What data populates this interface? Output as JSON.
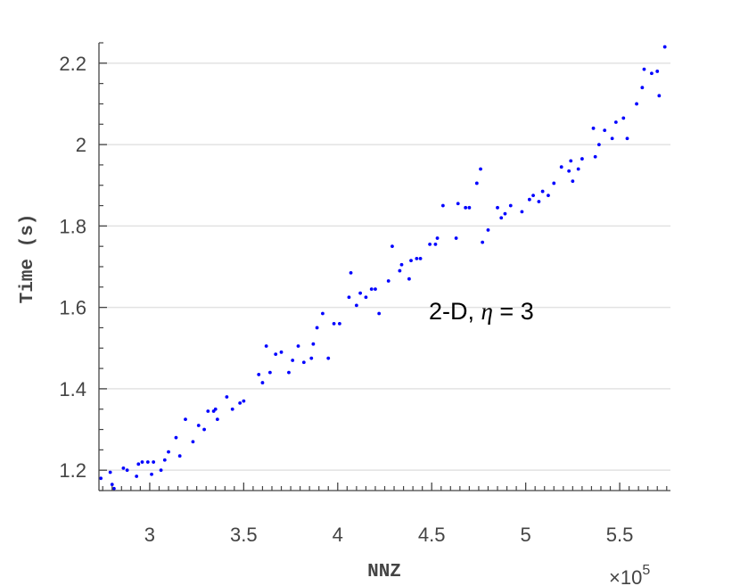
{
  "chart_data": {
    "type": "scatter",
    "xlabel": "NNZ",
    "ylabel": "Time (s)",
    "x_multiplier": {
      "base": "×10",
      "exponent": "5"
    },
    "xlim": [
      2.73,
      5.77
    ],
    "ylim": [
      1.15,
      2.25
    ],
    "x_ticks": [
      3,
      3.5,
      4,
      4.5,
      5,
      5.5
    ],
    "x_tick_labels": [
      "3",
      "3.5",
      "4",
      "4.5",
      "5",
      "5.5"
    ],
    "y_ticks": [
      1.2,
      1.4,
      1.6,
      1.8,
      2.0,
      2.2
    ],
    "y_tick_labels": [
      "1.2",
      "1.4",
      "1.6",
      "1.8",
      "2",
      "2.2"
    ],
    "grid": {
      "y": true,
      "x": false
    },
    "annotation": {
      "main": "2-D, ",
      "symbol": "η",
      "rest": " = 3"
    },
    "marker_color": "#0000ff",
    "series": [
      {
        "points": [
          [
            2.74,
            1.18
          ],
          [
            2.79,
            1.195
          ],
          [
            2.8,
            1.165
          ],
          [
            2.81,
            1.155
          ],
          [
            2.86,
            1.205
          ],
          [
            2.88,
            1.2
          ],
          [
            2.93,
            1.185
          ],
          [
            2.94,
            1.215
          ],
          [
            2.96,
            1.22
          ],
          [
            2.99,
            1.22
          ],
          [
            3.01,
            1.19
          ],
          [
            3.02,
            1.22
          ],
          [
            3.06,
            1.2
          ],
          [
            3.08,
            1.225
          ],
          [
            3.1,
            1.245
          ],
          [
            3.14,
            1.28
          ],
          [
            3.16,
            1.235
          ],
          [
            3.19,
            1.325
          ],
          [
            3.23,
            1.27
          ],
          [
            3.26,
            1.31
          ],
          [
            3.29,
            1.3
          ],
          [
            3.31,
            1.345
          ],
          [
            3.34,
            1.345
          ],
          [
            3.35,
            1.35
          ],
          [
            3.36,
            1.325
          ],
          [
            3.41,
            1.38
          ],
          [
            3.44,
            1.35
          ],
          [
            3.48,
            1.365
          ],
          [
            3.5,
            1.37
          ],
          [
            3.58,
            1.435
          ],
          [
            3.6,
            1.415
          ],
          [
            3.62,
            1.505
          ],
          [
            3.64,
            1.44
          ],
          [
            3.67,
            1.485
          ],
          [
            3.7,
            1.49
          ],
          [
            3.74,
            1.44
          ],
          [
            3.76,
            1.47
          ],
          [
            3.79,
            1.505
          ],
          [
            3.82,
            1.465
          ],
          [
            3.86,
            1.475
          ],
          [
            3.87,
            1.51
          ],
          [
            3.89,
            1.55
          ],
          [
            3.92,
            1.585
          ],
          [
            3.95,
            1.475
          ],
          [
            3.98,
            1.56
          ],
          [
            4.01,
            1.56
          ],
          [
            4.06,
            1.625
          ],
          [
            4.07,
            1.685
          ],
          [
            4.1,
            1.605
          ],
          [
            4.12,
            1.635
          ],
          [
            4.15,
            1.625
          ],
          [
            4.18,
            1.645
          ],
          [
            4.2,
            1.645
          ],
          [
            4.22,
            1.585
          ],
          [
            4.27,
            1.665
          ],
          [
            4.29,
            1.75
          ],
          [
            4.33,
            1.69
          ],
          [
            4.34,
            1.705
          ],
          [
            4.38,
            1.67
          ],
          [
            4.39,
            1.715
          ],
          [
            4.42,
            1.72
          ],
          [
            4.44,
            1.72
          ],
          [
            4.49,
            1.755
          ],
          [
            4.52,
            1.755
          ],
          [
            4.53,
            1.77
          ],
          [
            4.56,
            1.85
          ],
          [
            4.63,
            1.77
          ],
          [
            4.64,
            1.855
          ],
          [
            4.68,
            1.845
          ],
          [
            4.7,
            1.845
          ],
          [
            4.74,
            1.905
          ],
          [
            4.76,
            1.94
          ],
          [
            4.77,
            1.76
          ],
          [
            4.8,
            1.79
          ],
          [
            4.85,
            1.845
          ],
          [
            4.87,
            1.82
          ],
          [
            4.89,
            1.83
          ],
          [
            4.92,
            1.85
          ],
          [
            4.98,
            1.835
          ],
          [
            5.02,
            1.865
          ],
          [
            5.04,
            1.875
          ],
          [
            5.07,
            1.86
          ],
          [
            5.09,
            1.885
          ],
          [
            5.12,
            1.875
          ],
          [
            5.15,
            1.905
          ],
          [
            5.19,
            1.945
          ],
          [
            5.23,
            1.935
          ],
          [
            5.24,
            1.96
          ],
          [
            5.25,
            1.91
          ],
          [
            5.28,
            1.94
          ],
          [
            5.3,
            1.965
          ],
          [
            5.36,
            2.04
          ],
          [
            5.37,
            1.97
          ],
          [
            5.39,
            2.0
          ],
          [
            5.42,
            2.035
          ],
          [
            5.46,
            2.015
          ],
          [
            5.48,
            2.055
          ],
          [
            5.52,
            2.065
          ],
          [
            5.54,
            2.015
          ],
          [
            5.59,
            2.1
          ],
          [
            5.62,
            2.14
          ],
          [
            5.63,
            2.185
          ],
          [
            5.67,
            2.175
          ],
          [
            5.7,
            2.18
          ],
          [
            5.71,
            2.12
          ],
          [
            5.74,
            2.24
          ]
        ]
      }
    ]
  }
}
